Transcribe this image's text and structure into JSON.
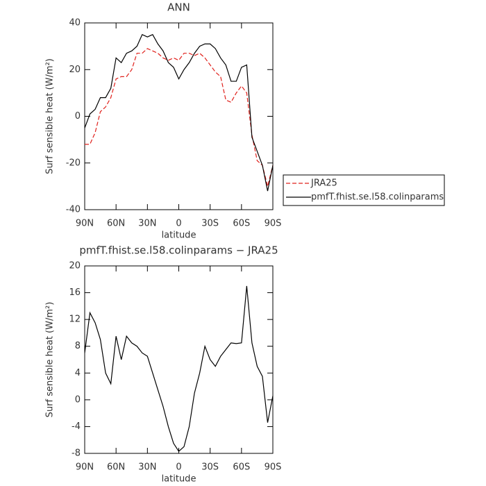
{
  "chart_data": [
    {
      "type": "line",
      "title": "ANN",
      "xlabel": "latitude",
      "ylabel": "Surf sensible heat (W/m²)",
      "x": [
        90,
        85,
        80,
        75,
        70,
        65,
        60,
        55,
        50,
        45,
        40,
        35,
        30,
        25,
        20,
        15,
        10,
        5,
        0,
        -5,
        -10,
        -15,
        -20,
        -25,
        -30,
        -35,
        -40,
        -45,
        -50,
        -55,
        -60,
        -65,
        -70,
        -75,
        -80,
        -85,
        -90
      ],
      "xlim": [
        90,
        -90
      ],
      "xticks": [
        {
          "value": 90,
          "label": "90N"
        },
        {
          "value": 60,
          "label": "60N"
        },
        {
          "value": 30,
          "label": "30N"
        },
        0,
        {
          "value": -30,
          "label": "30S"
        },
        {
          "value": -60,
          "label": "60S"
        },
        {
          "value": -90,
          "label": "90S"
        }
      ],
      "ylim": [
        -40,
        40
      ],
      "yticks": [
        -40,
        -20,
        0,
        20,
        40
      ],
      "legend": "outside-right",
      "series": [
        {
          "name": "JRA25",
          "color": "#e0201b",
          "linestyle": "dashed",
          "values": [
            -12,
            -12,
            -7,
            2,
            4,
            8,
            16,
            17,
            17,
            20,
            27,
            27,
            29,
            28,
            27,
            25,
            24,
            25,
            24,
            27,
            27,
            26,
            27,
            25,
            22,
            19,
            17,
            7,
            6,
            10,
            13,
            10,
            -8,
            -19,
            -21,
            -30,
            -21
          ]
        },
        {
          "name": "pmfT.fhist.se.l58.colinparams",
          "color": "#000000",
          "linestyle": "solid",
          "values": [
            -5,
            1,
            3,
            8,
            8,
            12,
            25,
            23,
            27,
            28,
            30,
            35,
            34,
            35,
            31,
            28,
            23,
            21,
            16,
            20,
            23,
            27,
            30,
            31,
            31,
            29,
            25,
            22,
            15,
            15,
            21,
            22,
            -9,
            -15,
            -21,
            -32,
            -21
          ]
        }
      ]
    },
    {
      "type": "line",
      "title": "pmfT.fhist.se.l58.colinparams − JRA25",
      "xlabel": "latitude",
      "ylabel": "Surf sensible heat (W/m²)",
      "x": [
        90,
        85,
        80,
        75,
        70,
        65,
        60,
        55,
        50,
        45,
        40,
        35,
        30,
        25,
        20,
        15,
        10,
        5,
        0,
        -5,
        -10,
        -15,
        -20,
        -25,
        -30,
        -35,
        -40,
        -45,
        -50,
        -55,
        -60,
        -65,
        -70,
        -75,
        -80,
        -85,
        -90
      ],
      "xlim": [
        90,
        -90
      ],
      "xticks": [
        {
          "value": 90,
          "label": "90N"
        },
        {
          "value": 60,
          "label": "60N"
        },
        {
          "value": 30,
          "label": "30N"
        },
        0,
        {
          "value": -30,
          "label": "30S"
        },
        {
          "value": -60,
          "label": "60S"
        },
        {
          "value": -90,
          "label": "90S"
        }
      ],
      "ylim": [
        -8,
        20
      ],
      "yticks": [
        -8,
        -4,
        0,
        4,
        8,
        12,
        16,
        20
      ],
      "series": [
        {
          "color": "#000000",
          "linestyle": "solid",
          "values": [
            7,
            13,
            11.5,
            9,
            4,
            2.4,
            9.5,
            6,
            9.5,
            8.5,
            8,
            7,
            6.5,
            4,
            1.5,
            -1,
            -4,
            -6.5,
            -7.7,
            -7,
            -4,
            1,
            4,
            8,
            6,
            5,
            6.5,
            7.5,
            8.5,
            8.4,
            8.5,
            17,
            8.5,
            5,
            3.5,
            -3.4,
            0.6
          ]
        }
      ]
    }
  ]
}
